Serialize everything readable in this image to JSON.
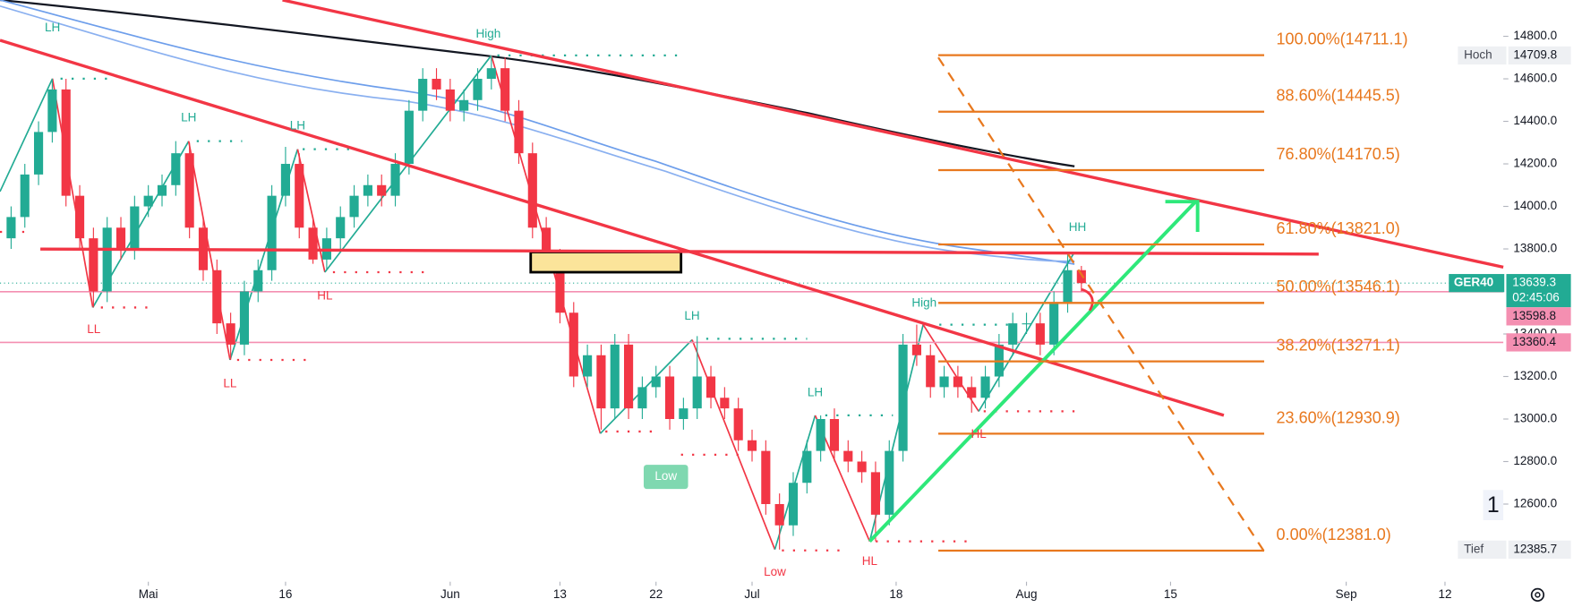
{
  "chart_data": {
    "type": "candlestick",
    "instrument": "GER40",
    "x": [
      -10,
      -9,
      -8,
      -7,
      -6,
      -5,
      -4,
      -3,
      -2,
      -1,
      0,
      1,
      2,
      3,
      4,
      5,
      6,
      7,
      8,
      9,
      10,
      11,
      12,
      13,
      14,
      15,
      16,
      17,
      18,
      19,
      20,
      21,
      22,
      23,
      24,
      25,
      26,
      27,
      28,
      29,
      30,
      31,
      32,
      33,
      34,
      35,
      36,
      37,
      38,
      39,
      40,
      41,
      42,
      43,
      44,
      45,
      46,
      47,
      48,
      49,
      50,
      51,
      52,
      53,
      54,
      55,
      56,
      57,
      58,
      59,
      60,
      61,
      62,
      63,
      64,
      65,
      66,
      67,
      68
    ],
    "open": [
      13850,
      13950,
      14150,
      14350,
      14550,
      14050,
      13850,
      13600,
      13900,
      13800,
      14000,
      14050,
      14100,
      14250,
      13900,
      13700,
      13450,
      13350,
      13600,
      13700,
      14050,
      14200,
      13900,
      13750,
      13850,
      13950,
      14050,
      14100,
      14050,
      14200,
      14450,
      14600,
      14550,
      14450,
      14500,
      14600,
      14650,
      14450,
      14250,
      13900,
      13750,
      13500,
      13200,
      13300,
      13050,
      13350,
      13050,
      13150,
      13200,
      13000,
      13050,
      13200,
      13100,
      13050,
      12900,
      12850,
      12600,
      12500,
      12700,
      12850,
      13000,
      12850,
      12800,
      12750,
      12550,
      12850,
      13350,
      13300,
      13150,
      13200,
      13150,
      13100,
      13200,
      13350,
      13450,
      13450,
      13350,
      13550,
      13700
    ],
    "high": [
      14000,
      14200,
      14400,
      14600,
      14600,
      14100,
      13900,
      13950,
      13950,
      14050,
      14100,
      14150,
      14307,
      14300,
      13950,
      13750,
      13500,
      13650,
      13750,
      14100,
      14280,
      14250,
      13950,
      13900,
      14000,
      14100,
      14150,
      14150,
      14250,
      14500,
      14650,
      14650,
      14600,
      14550,
      14650,
      14710,
      14700,
      14500,
      14300,
      13950,
      13800,
      13550,
      13350,
      13350,
      13400,
      13400,
      13200,
      13250,
      13250,
      13100,
      13390,
      13250,
      13150,
      13100,
      12950,
      12900,
      12650,
      12750,
      12900,
      13017,
      13050,
      12900,
      12850,
      12800,
      12900,
      13400,
      13444,
      13350,
      13250,
      13250,
      13200,
      13250,
      13400,
      13500,
      13500,
      13500,
      13600,
      13785,
      13720
    ],
    "low": [
      13800,
      13900,
      14100,
      14300,
      14000,
      13800,
      13525,
      13550,
      13750,
      13750,
      13950,
      14000,
      14050,
      13850,
      13650,
      13400,
      13278,
      13300,
      13550,
      13650,
      14000,
      13850,
      13730,
      13700,
      13800,
      13900,
      14000,
      14000,
      14000,
      14150,
      14400,
      14500,
      14400,
      14400,
      14450,
      14550,
      14400,
      14200,
      13850,
      13700,
      13450,
      13150,
      13150,
      12950,
      13000,
      13000,
      13000,
      13100,
      12950,
      12950,
      13000,
      13050,
      13000,
      12850,
      12800,
      12550,
      12386,
      12450,
      12650,
      12800,
      12800,
      12750,
      12700,
      12425,
      12500,
      12800,
      13250,
      13100,
      13100,
      13100,
      13030,
      13050,
      13150,
      13300,
      13400,
      13300,
      13300,
      13500,
      13600
    ],
    "close": [
      13950,
      14150,
      14350,
      14550,
      14050,
      13850,
      13600,
      13900,
      13800,
      14000,
      14050,
      14100,
      14250,
      13900,
      13700,
      13450,
      13350,
      13600,
      13700,
      14050,
      14200,
      13900,
      13750,
      13850,
      13950,
      14050,
      14100,
      14050,
      14200,
      14450,
      14600,
      14550,
      14450,
      14500,
      14600,
      14650,
      14450,
      14250,
      13900,
      13750,
      13500,
      13200,
      13300,
      13050,
      13350,
      13050,
      13150,
      13200,
      13000,
      13050,
      13200,
      13100,
      13050,
      12900,
      12850,
      12600,
      12500,
      12700,
      12850,
      13000,
      12850,
      12800,
      12750,
      12550,
      12850,
      13350,
      13300,
      13150,
      13200,
      13150,
      13100,
      13200,
      13350,
      13450,
      13450,
      13350,
      13550,
      13700,
      13639
    ],
    "up_color": "#22ab94",
    "down_color": "#f23645",
    "xlim": [
      -10.81,
      98.75
    ],
    "xticks": [
      {
        "value": 0,
        "label": "Mai"
      },
      {
        "value": 10,
        "label": "16"
      },
      {
        "value": 22,
        "label": "Jun"
      },
      {
        "value": 30,
        "label": "13"
      },
      {
        "value": 37,
        "label": "22"
      },
      {
        "value": 44,
        "label": "Jul"
      },
      {
        "value": 54.5,
        "label": "18"
      },
      {
        "value": 64,
        "label": "Aug"
      },
      {
        "value": 74.5,
        "label": "15"
      },
      {
        "value": 87.3,
        "label": "Sep"
      },
      {
        "value": 94.5,
        "label": "12"
      }
    ],
    "ylim": [
      12244.3,
      14970.7
    ],
    "yticks": [
      {
        "value": 14800,
        "label": "14800.0"
      },
      {
        "value": 14600,
        "label": "14600.0"
      },
      {
        "value": 14400,
        "label": "14400.0"
      },
      {
        "value": 14200,
        "label": "14200.0"
      },
      {
        "value": 14000,
        "label": "14000.0"
      },
      {
        "value": 13800,
        "label": "13800.0"
      },
      {
        "value": 13400,
        "label": "13400.0"
      },
      {
        "value": 13200,
        "label": "13200.0"
      },
      {
        "value": 13000,
        "label": "13000.0"
      },
      {
        "value": 12800,
        "label": "12800.0"
      },
      {
        "value": 12600,
        "label": "12600.0"
      }
    ],
    "fib_color": "#e8781e",
    "fib_levels": [
      {
        "value": 14711.1,
        "label": "100.00%(14711.1)"
      },
      {
        "value": 14445.5,
        "label": "88.60%(14445.5)"
      },
      {
        "value": 14170.5,
        "label": "76.80%(14170.5)"
      },
      {
        "value": 13821.0,
        "label": "61.80%(13821.0)"
      },
      {
        "value": 13546.1,
        "label": "50.00%(13546.1)"
      },
      {
        "value": 13271.1,
        "label": "38.20%(13271.1)"
      },
      {
        "value": 12930.9,
        "label": "23.60%(12930.9)"
      },
      {
        "value": 12381.0,
        "label": "0.00%(12381.0)"
      }
    ],
    "price_badges": [
      {
        "name": "Hoch",
        "value": 14709.8
      },
      {
        "name": "Tief",
        "value": 12385.7
      }
    ],
    "last_price": {
      "name": "GER40",
      "value": 13639.3,
      "countdown": "02:45:06"
    },
    "level_badges": [
      13598.8,
      13360.4
    ],
    "annotations": [
      "LH",
      "LH",
      "LH",
      "High",
      "LL",
      "LL",
      "HL",
      "LH",
      "Low",
      "LH",
      "Low",
      "HL",
      "High",
      "HL",
      "HH"
    ],
    "interval_marker": "1"
  }
}
